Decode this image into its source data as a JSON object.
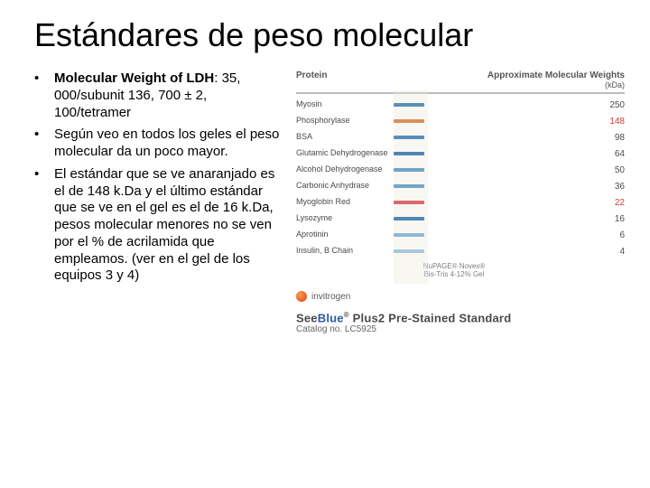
{
  "title": "Estándares de peso molecular",
  "bullets": [
    {
      "bold_prefix": "Molecular Weight of LDH",
      "rest": ": 35, 000/subunit 136, 700 ± 2, 100/tetramer"
    },
    {
      "text": "Según veo en todos los geles el peso molecular da un poco mayor."
    },
    {
      "text": "El estándar que se ve anaranjado es el de 148 k.Da y el último estándar que se ve en el gel es el de 16 k.Da, pesos molecular menores no se ven por el % de acrilamida que empleamos. (ver en el gel de los equipos 3 y 4)"
    }
  ],
  "figure": {
    "header_left": "Protein",
    "header_right_top": "Approximate Molecular Weights",
    "header_right_bottom": "(kDa)",
    "rows": [
      {
        "label": "Myosin",
        "mw": "250",
        "color": "#5a8fbb",
        "red": false
      },
      {
        "label": "Phosphorylase",
        "mw": "148",
        "color": "#d9905a",
        "red": true
      },
      {
        "label": "BSA",
        "mw": "98",
        "color": "#5a8fbb",
        "red": false
      },
      {
        "label": "Glutamic Dehydrogenase",
        "mw": "64",
        "color": "#4e86b3",
        "red": false
      },
      {
        "label": "Alcohol Dehydrogenase",
        "mw": "50",
        "color": "#6fa3c7",
        "red": false
      },
      {
        "label": "Carbonic Anhydrase",
        "mw": "36",
        "color": "#73a7ca",
        "red": false
      },
      {
        "label": "Myoglobin Red",
        "mw": "22",
        "color": "#d96a6a",
        "red": true
      },
      {
        "label": "Lysozyme",
        "mw": "16",
        "color": "#4e86b3",
        "red": false
      },
      {
        "label": "Aprotinin",
        "mw": "6",
        "color": "#8fb8d4",
        "red": false
      },
      {
        "label": "Insulin, B Chain",
        "mw": "4",
        "color": "#a9c7db",
        "red": false
      }
    ],
    "gel_footer_line1": "NuPAGE® Novex®",
    "gel_footer_line2": "Bis-Tris 4-12% Gel",
    "brand": "invitrogen",
    "product_name_prefix": "See",
    "product_name_blue": "Blue",
    "product_name_suffix": " Plus2 Pre-Stained Standard",
    "catalog": "Catalog no. LC5925"
  },
  "colors": {
    "text": "#000000",
    "grey": "#5a5a5a",
    "orange_red": "#d23a3a"
  }
}
